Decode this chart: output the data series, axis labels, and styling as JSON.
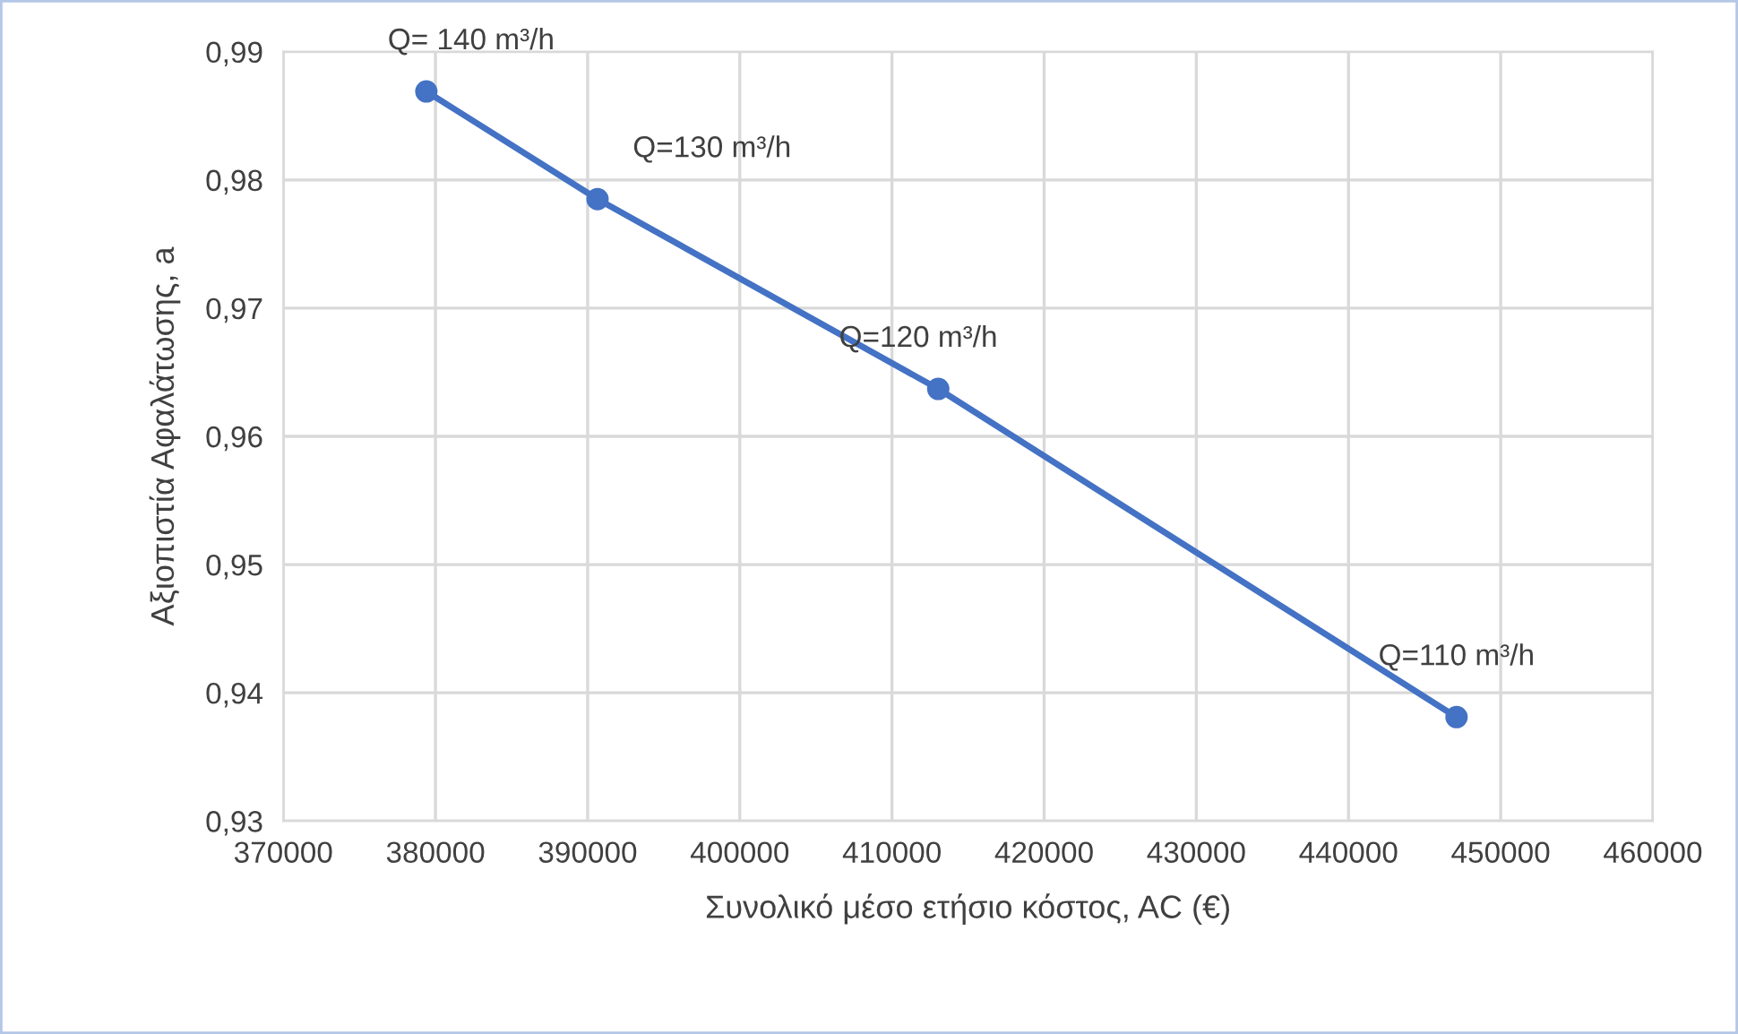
{
  "chart_data": {
    "type": "line",
    "xlabel": "Συνολικό μέσο ετήσιο κόστος, AC (€)",
    "ylabel": "Αξιοπιστία Αφαλάτωσης, a",
    "x": [
      379400,
      390650,
      413040,
      447100
    ],
    "series": [
      {
        "color": "#4472c4",
        "values": [
          0.9869,
          0.9785,
          0.9637,
          0.9381
        ]
      }
    ],
    "marker": "circle",
    "line_style": "solid",
    "grid": true,
    "xlim": [
      370000,
      460000
    ],
    "xticks": [
      370000,
      380000,
      390000,
      400000,
      410000,
      420000,
      430000,
      440000,
      450000,
      460000
    ],
    "ylim": [
      0.93,
      0.99
    ],
    "yticks": [
      {
        "value": 0.93,
        "label": "0,93"
      },
      {
        "value": 0.94,
        "label": "0,94"
      },
      {
        "value": 0.95,
        "label": "0,95"
      },
      {
        "value": 0.96,
        "label": "0,96"
      },
      {
        "value": 0.97,
        "label": "0,97"
      },
      {
        "value": 0.98,
        "label": "0,98"
      },
      {
        "value": 0.99,
        "label": "0,99"
      }
    ],
    "annotations": [
      {
        "text": "Q= 140 m³/h",
        "x": 379400,
        "y": 0.9869
      },
      {
        "text": "Q=130 m³/h",
        "x": 390650,
        "y": 0.9785
      },
      {
        "text": "Q=120 m³/h",
        "x": 413040,
        "y": 0.9637
      },
      {
        "text": "Q=110 m³/h",
        "x": 447100,
        "y": 0.9381
      }
    ]
  }
}
